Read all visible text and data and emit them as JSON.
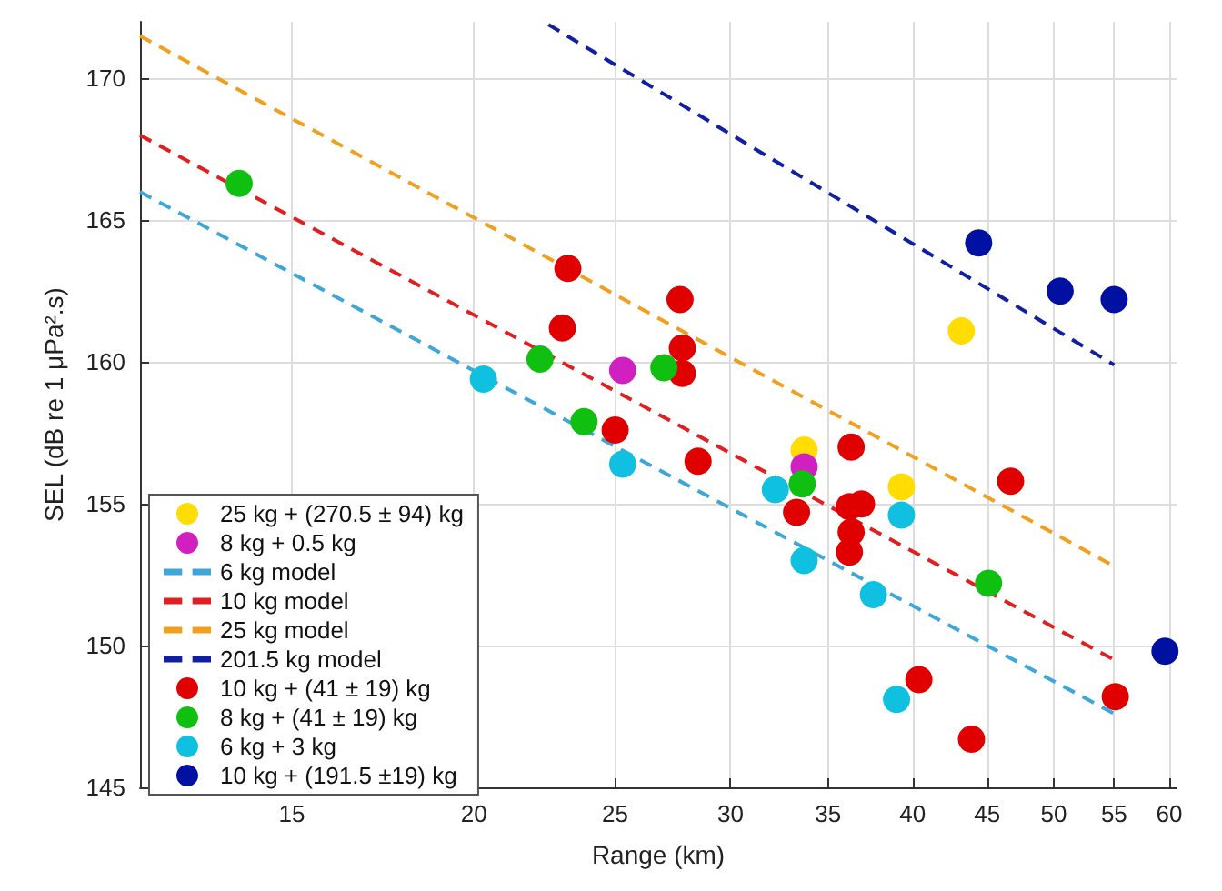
{
  "chart_data": {
    "type": "scatter",
    "xlabel": "Range (km)",
    "ylabel": "SEL (dB re 1 μPa².s)",
    "log": "x",
    "grid": true,
    "legend": "left",
    "marker": "circle",
    "xlim": [
      11.8,
      60.7
    ],
    "xticks": [
      15,
      20,
      25,
      30,
      35,
      40,
      45,
      50,
      55,
      60
    ],
    "ylim": [
      145,
      172
    ],
    "yticks": [
      145,
      150,
      155,
      160,
      165,
      170
    ],
    "series": [
      {
        "name": "25 kg + (270.5 ± 94) kg",
        "type": "scatter",
        "color": "#ffdd00",
        "x": [
          43.2,
          33.7,
          39.3
        ],
        "values": [
          161.1,
          156.9,
          155.6
        ]
      },
      {
        "name": "8 kg + 0.5 kg",
        "type": "scatter",
        "color": "#d020c0",
        "x": [
          25.3,
          33.7
        ],
        "values": [
          159.7,
          156.3
        ]
      },
      {
        "name": "6 kg model",
        "type": "line",
        "line_style": "dashed",
        "marker": "none",
        "color": "#3fa6d8",
        "x": [
          11.8,
          55
        ],
        "values": [
          166.0,
          147.6
        ]
      },
      {
        "name": "10 kg model",
        "type": "line",
        "line_style": "dashed",
        "marker": "none",
        "color": "#e02020",
        "x": [
          11.8,
          55
        ],
        "values": [
          168.0,
          149.5
        ]
      },
      {
        "name": "25 kg model",
        "type": "line",
        "line_style": "dashed",
        "marker": "none",
        "color": "#f0a020",
        "x": [
          11.8,
          55
        ],
        "values": [
          171.5,
          152.8
        ]
      },
      {
        "name": "201.5 kg model",
        "type": "line",
        "line_style": "dashed",
        "marker": "none",
        "color": "#1020a0",
        "x": [
          22.5,
          55
        ],
        "values": [
          171.9,
          159.9
        ]
      },
      {
        "name": "10 kg + (41 ± 19) kg",
        "type": "scatter",
        "color": "#e00000",
        "x": [
          23.2,
          23.0,
          27.7,
          27.8,
          27.8,
          25.0,
          28.5,
          36.3,
          33.3,
          36.2,
          36.9,
          36.3,
          36.2,
          46.7,
          40.4,
          43.9,
          55.1
        ],
        "values": [
          163.3,
          161.2,
          162.2,
          160.5,
          159.6,
          157.6,
          156.5,
          157.0,
          154.7,
          154.9,
          155.0,
          154.0,
          153.3,
          155.8,
          148.8,
          146.7,
          148.2
        ]
      },
      {
        "name": "8 kg + (41 ± 19) kg",
        "type": "scatter",
        "color": "#10c010",
        "x": [
          13.8,
          22.2,
          27.0,
          23.8,
          33.6,
          45.1
        ],
        "values": [
          166.3,
          160.1,
          159.8,
          157.9,
          155.7,
          152.2
        ]
      },
      {
        "name": "6 kg + 3 kg",
        "type": "scatter",
        "color": "#10c0e0",
        "x": [
          20.3,
          25.3,
          32.2,
          33.7,
          39.3,
          37.6,
          39.0
        ],
        "values": [
          159.4,
          156.4,
          155.5,
          153.0,
          154.6,
          151.8,
          148.1
        ]
      },
      {
        "name": "10 kg + (191.5 ±19) kg",
        "type": "scatter",
        "color": "#0010a0",
        "x": [
          44.4,
          50.5,
          55.0,
          59.6
        ],
        "values": [
          164.2,
          162.5,
          162.2,
          149.8
        ]
      }
    ]
  }
}
